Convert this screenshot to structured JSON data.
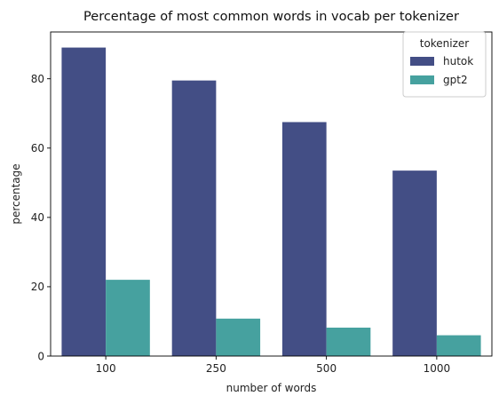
{
  "chart_data": {
    "type": "bar",
    "title": "Percentage of most common words in vocab per tokenizer",
    "xlabel": "number of words",
    "ylabel": "percentage",
    "categories": [
      "100",
      "250",
      "500",
      "1000"
    ],
    "series": [
      {
        "name": "hutok",
        "values": [
          89.0,
          79.5,
          67.5,
          53.5
        ],
        "color": "#434e85"
      },
      {
        "name": "gpt2",
        "values": [
          22.0,
          10.8,
          8.2,
          6.0
        ],
        "color": "#46a19f"
      }
    ],
    "ylim": [
      0,
      93.5
    ],
    "yticks": [
      "0",
      "20",
      "40",
      "60",
      "80"
    ],
    "grid": false,
    "legend": {
      "title": "tokenizer",
      "position": "top-right"
    }
  }
}
